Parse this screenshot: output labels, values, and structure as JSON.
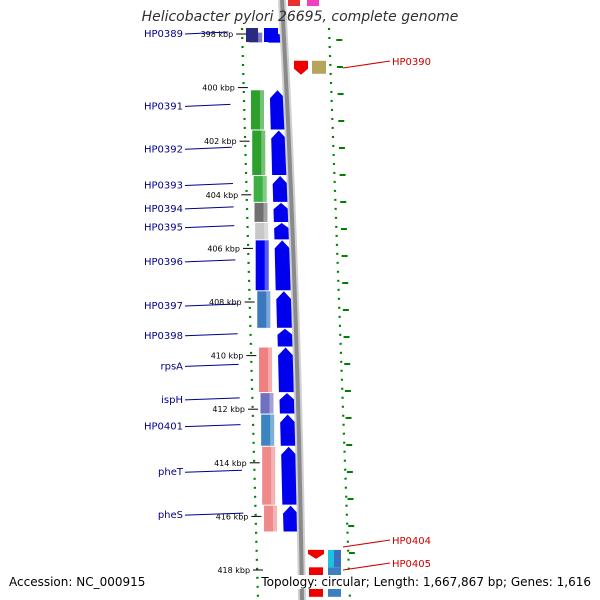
{
  "title": "Helicobacter pylori 26695, complete genome",
  "accession": "Accession: NC_000915",
  "summary": "Topology: circular; Length: 1,667,867 bp; Genes: 1,616",
  "colors": {
    "left_label": "#00008b",
    "right_label": "#cc0000",
    "tick": "#008000",
    "forward_gene": "#0000ee",
    "backbone": "#8a8a8a"
  },
  "scale": [
    {
      "label": "398 kbp",
      "kbp": 398
    },
    {
      "label": "400 kbp",
      "kbp": 400
    },
    {
      "label": "402 kbp",
      "kbp": 402
    },
    {
      "label": "404 kbp",
      "kbp": 404
    },
    {
      "label": "406 kbp",
      "kbp": 406
    },
    {
      "label": "408 kbp",
      "kbp": 408
    },
    {
      "label": "410 kbp",
      "kbp": 410
    },
    {
      "label": "412 kbp",
      "kbp": 412
    },
    {
      "label": "414 kbp",
      "kbp": 414
    },
    {
      "label": "416 kbp",
      "kbp": 416
    },
    {
      "label": "418 kbp",
      "kbp": 418
    }
  ],
  "left_genes": [
    {
      "name": "HP0389",
      "start_kbp": 397.95,
      "end_kbp": 398.35
    },
    {
      "name": "HP0391",
      "start_kbp": 400.1,
      "end_kbp": 401.6
    },
    {
      "name": "HP0392",
      "start_kbp": 401.6,
      "end_kbp": 403.3
    },
    {
      "name": "HP0393",
      "start_kbp": 403.3,
      "end_kbp": 404.3
    },
    {
      "name": "HP0394",
      "start_kbp": 404.3,
      "end_kbp": 405.05
    },
    {
      "name": "HP0395",
      "start_kbp": 405.05,
      "end_kbp": 405.7
    },
    {
      "name": "HP0396",
      "start_kbp": 405.7,
      "end_kbp": 407.6
    },
    {
      "name": "HP0397",
      "start_kbp": 407.6,
      "end_kbp": 409.0
    },
    {
      "name": "HP0398",
      "start_kbp": 409.0,
      "end_kbp": 409.7
    },
    {
      "name": "rpsA",
      "start_kbp": 409.7,
      "end_kbp": 411.4
    },
    {
      "name": "ispH",
      "start_kbp": 411.4,
      "end_kbp": 412.2
    },
    {
      "name": "HP0401",
      "start_kbp": 412.2,
      "end_kbp": 413.4
    },
    {
      "name": "pheT",
      "start_kbp": 413.4,
      "end_kbp": 415.6
    },
    {
      "name": "pheS",
      "start_kbp": 415.6,
      "end_kbp": 416.6
    }
  ],
  "right_genes": [
    {
      "name": "HP0390",
      "start_kbp": 399.0,
      "end_kbp": 399.55
    },
    {
      "name": "HP0404",
      "start_kbp": 417.25,
      "end_kbp": 417.9
    },
    {
      "name": "HP0405",
      "start_kbp": 417.9,
      "end_kbp": 419.0
    }
  ]
}
